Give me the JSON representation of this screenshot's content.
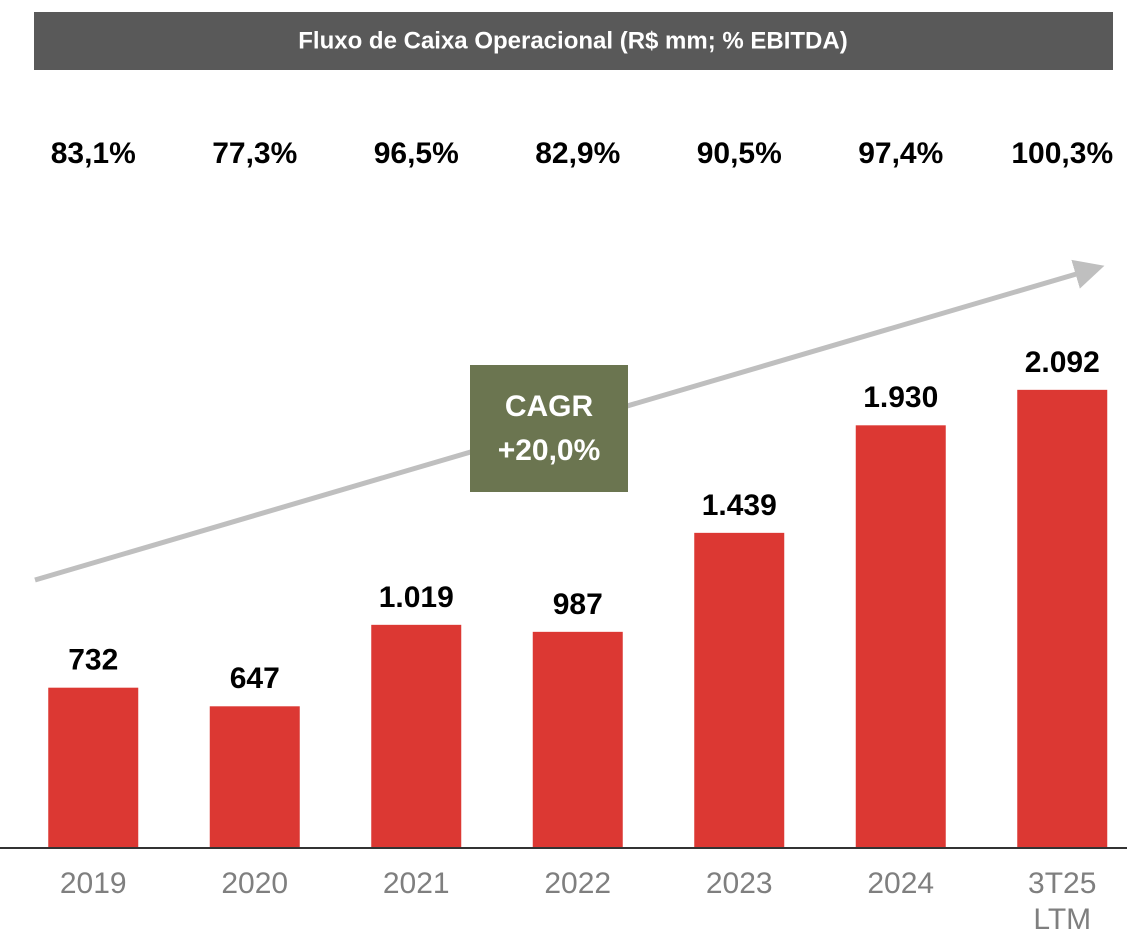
{
  "chart_data": {
    "type": "bar",
    "title": "Fluxo de Caixa Operacional (R$ mm; % EBITDA)",
    "categories": [
      "2019",
      "2020",
      "2021",
      "2022",
      "2023",
      "2024",
      "3T25 LTM"
    ],
    "values": [
      732,
      647,
      1019,
      987,
      1439,
      1930,
      2092
    ],
    "value_labels": [
      "732",
      "647",
      "1.019",
      "987",
      "1.439",
      "1.930",
      "2.092"
    ],
    "color": "#dc3833",
    "ylim": [
      0,
      3872
    ],
    "ebitda_conversion": {
      "values": [
        83.1,
        77.3,
        96.5,
        82.9,
        90.5,
        97.4,
        100.3
      ],
      "value_labels": [
        "83,1%",
        "77,3%",
        "96,5%",
        "82,9%",
        "90,5%",
        "97,4%",
        "100,3%"
      ]
    },
    "annotation": {
      "lines": [
        "CAGR",
        "+20,0%"
      ]
    }
  }
}
